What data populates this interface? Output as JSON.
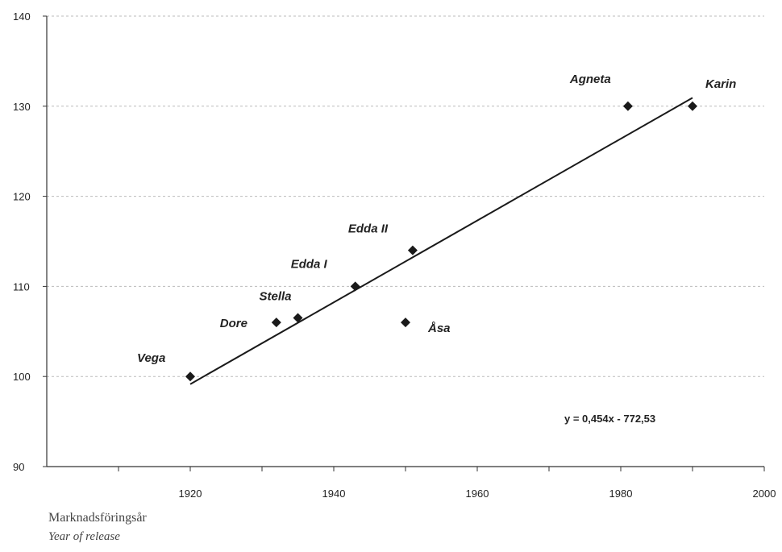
{
  "chart_data": {
    "type": "scatter",
    "xlabel": "Marknadsföringsår",
    "xlabel_en": "Year of release",
    "xlim": [
      1900,
      2000
    ],
    "ylim": [
      90,
      140
    ],
    "x_ticks": [
      1920,
      1940,
      1960,
      1980,
      2000
    ],
    "y_ticks": [
      90,
      100,
      110,
      120,
      130,
      140
    ],
    "grid": "horizontal dashed",
    "points": [
      {
        "label": "Vega",
        "x": 1920,
        "y": 100
      },
      {
        "label": "Dore",
        "x": 1932,
        "y": 106
      },
      {
        "label": "Stella",
        "x": 1935,
        "y": 106.5
      },
      {
        "label": "Edda I",
        "x": 1943,
        "y": 110
      },
      {
        "label": "Edda II",
        "x": 1951,
        "y": 114
      },
      {
        "label": "Åsa",
        "x": 1950,
        "y": 106
      },
      {
        "label": "Agneta",
        "x": 1981,
        "y": 130
      },
      {
        "label": "Karin",
        "x": 1990,
        "y": 130
      }
    ],
    "trendline": {
      "equation": "y = 0,454x - 772,53",
      "x_start": 1920,
      "x_end": 1990
    },
    "colors": {
      "marker": "#1a1a1a",
      "line": "#1a1a1a",
      "grid": "#bbbbbb"
    }
  }
}
